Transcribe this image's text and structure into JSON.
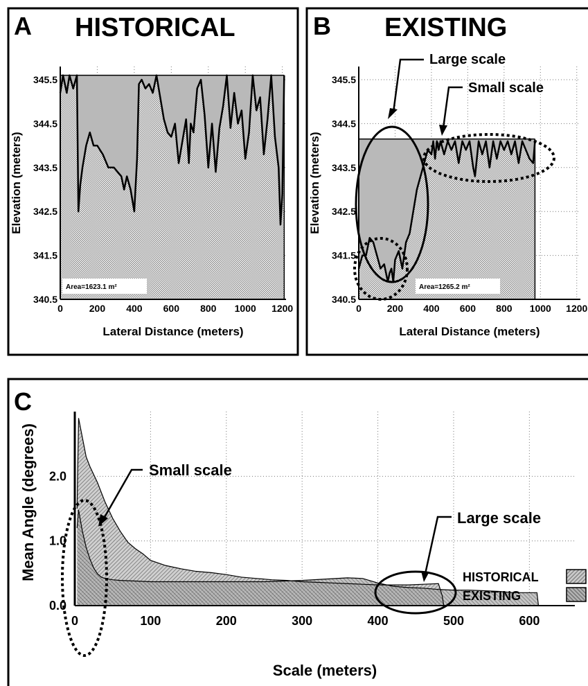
{
  "chart_data": [
    {
      "panel": "A",
      "title": "HISTORICAL",
      "type": "area",
      "xlabel": "Lateral Distance (meters)",
      "ylabel": "Elevation (meters)",
      "xlim": [
        0,
        1220
      ],
      "ylim": [
        340.5,
        345.8
      ],
      "xticks": [
        0,
        200,
        400,
        600,
        800,
        1000,
        1200
      ],
      "xtick_labels": [
        "0",
        "200",
        "400",
        "600",
        "800",
        "1000",
        "1200"
      ],
      "yticks": [
        340.5,
        341.5,
        342.5,
        343.5,
        344.5,
        345.5
      ],
      "ytick_labels": [
        "340.5",
        "341.5",
        "342.5",
        "343.5",
        "344.5",
        "345.5"
      ],
      "grid": true,
      "area_label": "Area=1623.1 m²",
      "fill_top": 345.6,
      "x": [
        0,
        15,
        35,
        50,
        70,
        90,
        98,
        108,
        120,
        140,
        160,
        180,
        200,
        230,
        260,
        290,
        310,
        330,
        345,
        360,
        380,
        400,
        415,
        425,
        440,
        460,
        480,
        500,
        520,
        540,
        560,
        580,
        600,
        620,
        640,
        660,
        680,
        695,
        705,
        720,
        740,
        760,
        780,
        800,
        820,
        840,
        860,
        880,
        900,
        920,
        940,
        960,
        980,
        1000,
        1020,
        1040,
        1060,
        1080,
        1100,
        1120,
        1140,
        1160,
        1180,
        1190,
        1200,
        1210
      ],
      "y": [
        345.2,
        345.6,
        345.2,
        345.6,
        345.3,
        345.6,
        342.5,
        343.1,
        343.5,
        344.0,
        344.3,
        344.0,
        344.0,
        343.8,
        343.5,
        343.5,
        343.4,
        343.3,
        343.0,
        343.3,
        343.0,
        342.5,
        343.7,
        345.4,
        345.5,
        345.3,
        345.4,
        345.2,
        345.6,
        345.1,
        344.6,
        344.3,
        344.2,
        344.5,
        343.6,
        344.1,
        344.6,
        343.6,
        344.5,
        344.3,
        345.3,
        345.5,
        344.7,
        343.5,
        344.5,
        343.4,
        344.4,
        344.9,
        345.6,
        344.4,
        345.2,
        344.5,
        344.8,
        343.7,
        344.3,
        345.6,
        344.8,
        345.1,
        343.8,
        344.6,
        345.6,
        344.2,
        343.5,
        342.2,
        342.9,
        345.6
      ]
    },
    {
      "panel": "B",
      "title": "EXISTING",
      "type": "area",
      "xlabel": "Lateral Distance (meters)",
      "ylabel": "Elevation (meters)",
      "xlim": [
        0,
        1220
      ],
      "ylim": [
        340.5,
        345.8
      ],
      "xticks": [
        0,
        200,
        400,
        600,
        800,
        1000,
        1200
      ],
      "xtick_labels": [
        "0",
        "200",
        "400",
        "600",
        "800",
        "1000",
        "1200"
      ],
      "yticks": [
        340.5,
        341.5,
        342.5,
        343.5,
        344.5,
        345.5
      ],
      "ytick_labels": [
        "340.5",
        "341.5",
        "342.5",
        "343.5",
        "344.5",
        "345.5"
      ],
      "grid": true,
      "area_label": "Area=1265.2 m²",
      "fill_top": 344.15,
      "x": [
        0,
        20,
        40,
        60,
        80,
        100,
        120,
        140,
        160,
        170,
        180,
        190,
        200,
        220,
        240,
        260,
        280,
        300,
        320,
        340,
        360,
        380,
        400,
        410,
        420,
        430,
        440,
        450,
        470,
        490,
        510,
        530,
        550,
        570,
        590,
        610,
        630,
        640,
        660,
        680,
        700,
        720,
        740,
        760,
        780,
        800,
        820,
        840,
        860,
        880,
        900,
        920,
        940,
        960,
        970
      ],
      "y": [
        341.2,
        341.5,
        341.5,
        341.9,
        341.8,
        341.5,
        341.2,
        341.3,
        340.9,
        341.1,
        341.2,
        340.9,
        341.4,
        341.6,
        341.2,
        341.8,
        342.0,
        342.5,
        343.0,
        343.3,
        343.6,
        343.9,
        343.8,
        344.1,
        343.7,
        344.1,
        343.9,
        344.1,
        343.8,
        344.1,
        343.9,
        344.1,
        343.6,
        344.1,
        343.9,
        344.1,
        343.5,
        343.3,
        344.1,
        343.8,
        344.1,
        343.5,
        344.1,
        343.7,
        344.1,
        343.9,
        344.1,
        343.8,
        344.1,
        343.6,
        344.1,
        343.9,
        343.7,
        343.6,
        344.1
      ]
    },
    {
      "panel": "C",
      "type": "area",
      "xlabel": "Scale (meters)",
      "ylabel": "Mean Angle (degrees)",
      "xlim": [
        0,
        660
      ],
      "ylim": [
        0,
        3.0
      ],
      "xticks": [
        0,
        100,
        200,
        300,
        400,
        500,
        600
      ],
      "xtick_labels": [
        "0",
        "100",
        "200",
        "300",
        "400",
        "500",
        "600"
      ],
      "yticks": [
        0.0,
        1.0,
        2.0
      ],
      "ytick_labels": [
        "0.0",
        "1.0",
        "2.0"
      ],
      "grid": true,
      "legend_position": "right",
      "series": [
        {
          "name": "HISTORICAL",
          "x": [
            3,
            5,
            10,
            15,
            20,
            30,
            40,
            50,
            60,
            70,
            80,
            90,
            100,
            120,
            140,
            160,
            180,
            200,
            220,
            240,
            260,
            280,
            300,
            320,
            340,
            360,
            380,
            400,
            420,
            440,
            460,
            480,
            485,
            487
          ],
          "values": [
            1.5,
            2.9,
            2.6,
            2.3,
            2.15,
            1.9,
            1.6,
            1.35,
            1.15,
            0.98,
            0.88,
            0.8,
            0.7,
            0.62,
            0.57,
            0.53,
            0.51,
            0.48,
            0.44,
            0.42,
            0.4,
            0.39,
            0.37,
            0.36,
            0.35,
            0.34,
            0.33,
            0.32,
            0.32,
            0.32,
            0.33,
            0.34,
            0.15,
            0.0
          ]
        },
        {
          "name": "EXISTING",
          "x": [
            3,
            5,
            10,
            15,
            20,
            25,
            30,
            35,
            40,
            50,
            60,
            80,
            100,
            150,
            200,
            250,
            300,
            330,
            360,
            380,
            400,
            420,
            440,
            460,
            480,
            500,
            520,
            540,
            560,
            580,
            600,
            610,
            612
          ],
          "values": [
            1.2,
            1.48,
            1.15,
            0.9,
            0.72,
            0.58,
            0.49,
            0.44,
            0.42,
            0.4,
            0.39,
            0.38,
            0.37,
            0.37,
            0.37,
            0.37,
            0.39,
            0.41,
            0.43,
            0.42,
            0.35,
            0.3,
            0.28,
            0.27,
            0.25,
            0.24,
            0.24,
            0.23,
            0.22,
            0.2,
            0.2,
            0.2,
            0.0
          ]
        }
      ]
    }
  ],
  "annotations": {
    "panel_b_large": "Large scale",
    "panel_b_small": "Small scale",
    "panel_c_small": "Small scale",
    "panel_c_large": "Large scale"
  },
  "colors": {
    "fill_gray": "#b4b4b4",
    "line": "#000000",
    "grid": "#888888"
  }
}
